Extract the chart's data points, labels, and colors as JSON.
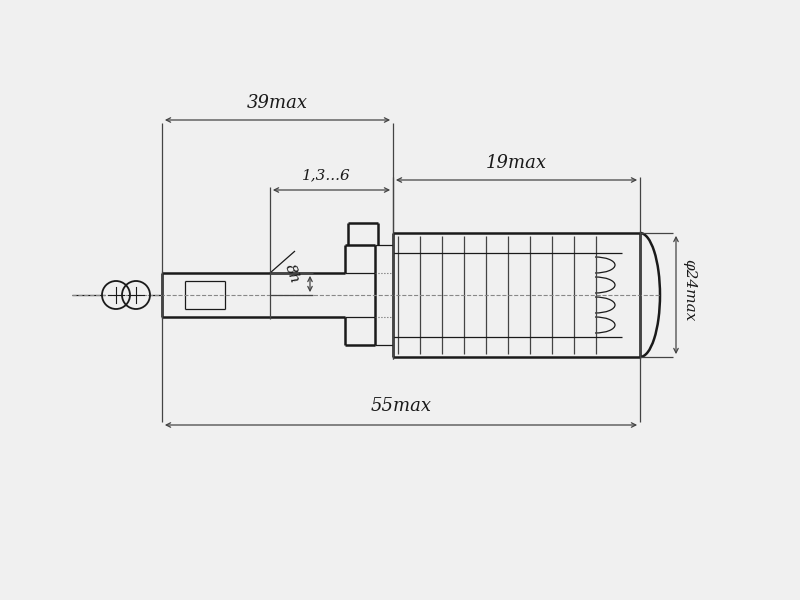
{
  "bg_color": "#f0f0f0",
  "line_color": "#1a1a1a",
  "dim_color": "#444444",
  "annotations": {
    "dim_55max": "55max",
    "dim_39max": "39max",
    "dim_19max": "19max",
    "dim_13_6": "1,3...6",
    "dim_phi24max": "φ24max",
    "dim_8h": "8h"
  },
  "fig_width": 8.0,
  "fig_height": 6.0,
  "dpi": 100
}
